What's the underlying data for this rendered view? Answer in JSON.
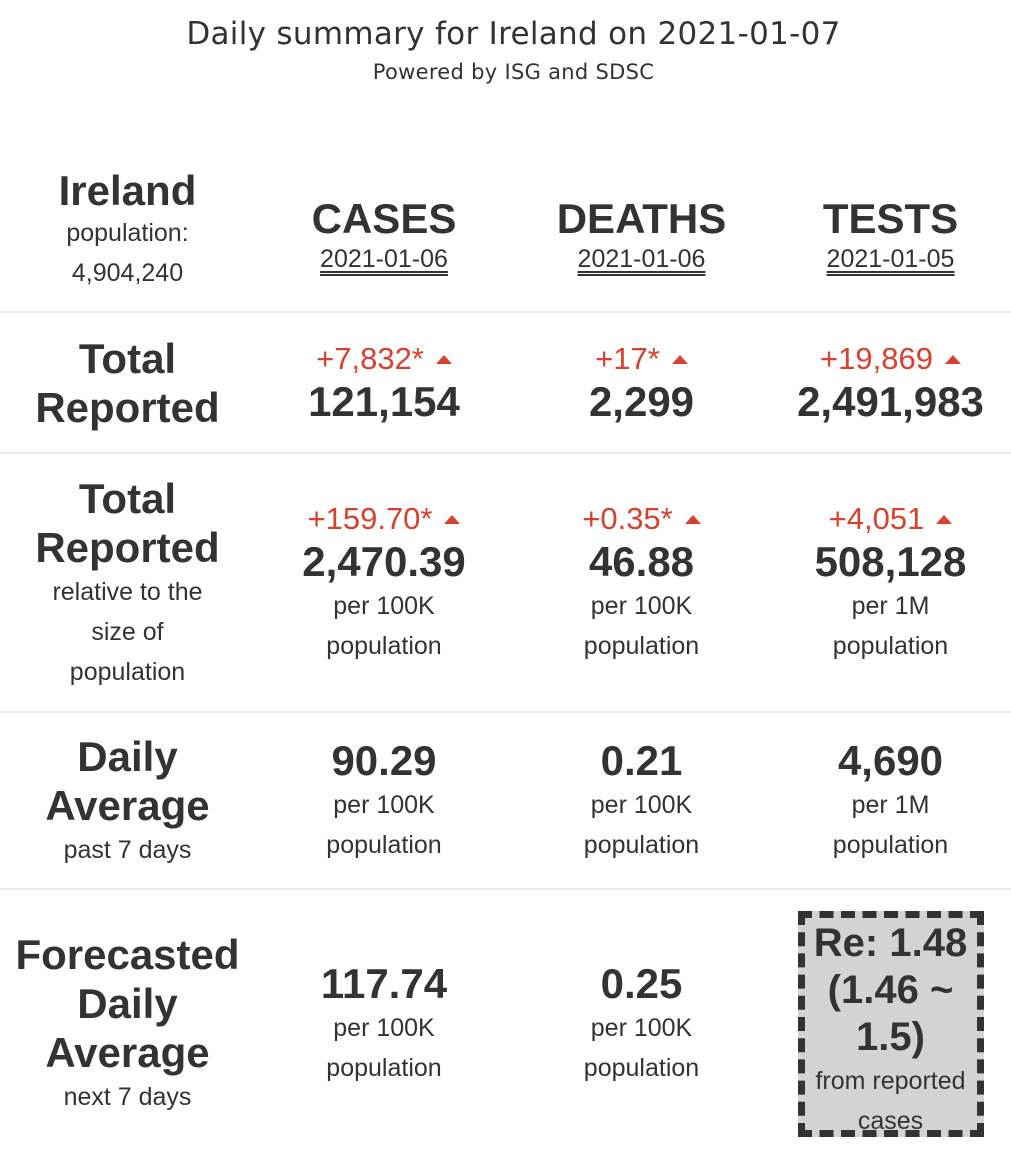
{
  "header": {
    "title": "Daily summary for Ireland on 2021-01-07",
    "subtitle": "Powered by ISG and SDSC"
  },
  "country": {
    "name": "Ireland",
    "population_label": "population:",
    "population": "4,904,240"
  },
  "columns": [
    {
      "metric": "CASES",
      "date": "2021-01-06"
    },
    {
      "metric": "DEATHS",
      "date": "2021-01-06"
    },
    {
      "metric": "TESTS",
      "date": "2021-01-05"
    }
  ],
  "rows": {
    "total": {
      "label_line1": "Total",
      "label_line2": "Reported",
      "cells": [
        {
          "delta": "+7,832*",
          "value": "121,154"
        },
        {
          "delta": "+17*",
          "value": "2,299"
        },
        {
          "delta": "+19,869",
          "value": "2,491,983"
        }
      ]
    },
    "relative": {
      "label_line1": "Total",
      "label_line2": "Reported",
      "note1": "relative to the",
      "note2": "size of",
      "note3": "population",
      "cells": [
        {
          "delta": "+159.70*",
          "value": "2,470.39",
          "unit1": "per 100K",
          "unit2": "population"
        },
        {
          "delta": "+0.35*",
          "value": "46.88",
          "unit1": "per 100K",
          "unit2": "population"
        },
        {
          "delta": "+4,051",
          "value": "508,128",
          "unit1": "per 1M",
          "unit2": "population"
        }
      ]
    },
    "daily": {
      "label_line1": "Daily",
      "label_line2": "Average",
      "note": "past 7 days",
      "cells": [
        {
          "value": "90.29",
          "unit1": "per 100K",
          "unit2": "population"
        },
        {
          "value": "0.21",
          "unit1": "per 100K",
          "unit2": "population"
        },
        {
          "value": "4,690",
          "unit1": "per 1M",
          "unit2": "population"
        }
      ]
    },
    "forecast": {
      "label_line1": "Forecasted",
      "label_line2": "Daily",
      "label_line3": "Average",
      "note": "next 7 days",
      "cells": [
        {
          "value": "117.74",
          "unit1": "per 100K",
          "unit2": "population"
        },
        {
          "value": "0.25",
          "unit1": "per 100K",
          "unit2": "population"
        }
      ],
      "re_box": {
        "line1": "Re: 1.48",
        "line2": "(1.46 ~",
        "line3": "1.5)",
        "note1": "from reported",
        "note2": "cases"
      }
    }
  },
  "colors": {
    "text": "#333333",
    "increase": "#d9412f",
    "re_box_bg": "#d3d3d3",
    "separator": "#ececec"
  },
  "icons": {
    "increase": "triangle-up-icon"
  }
}
